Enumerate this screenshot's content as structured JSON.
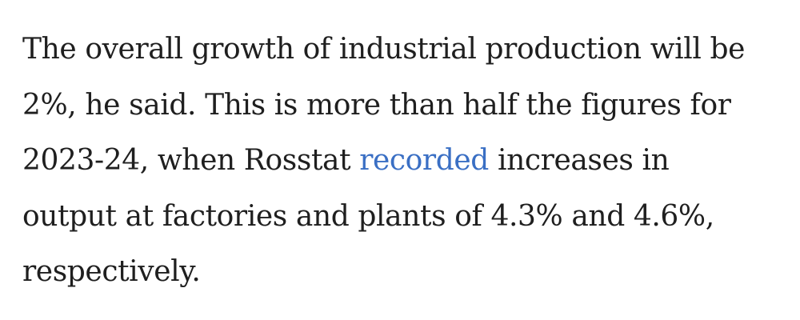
{
  "paragraph": {
    "line1": "The overall growth of industrial production will be",
    "line2": "2%, he said. This is more than half the figures for",
    "line3_before": "2023-24, when Rosstat ",
    "line3_link": "recorded",
    "line3_after": " increases in",
    "line4": "output at factories and plants of 4.3% and 4.6%,",
    "line5": "respectively."
  },
  "colors": {
    "text": "#1f1f1f",
    "link": "#3a6fc4",
    "background": "#ffffff"
  }
}
